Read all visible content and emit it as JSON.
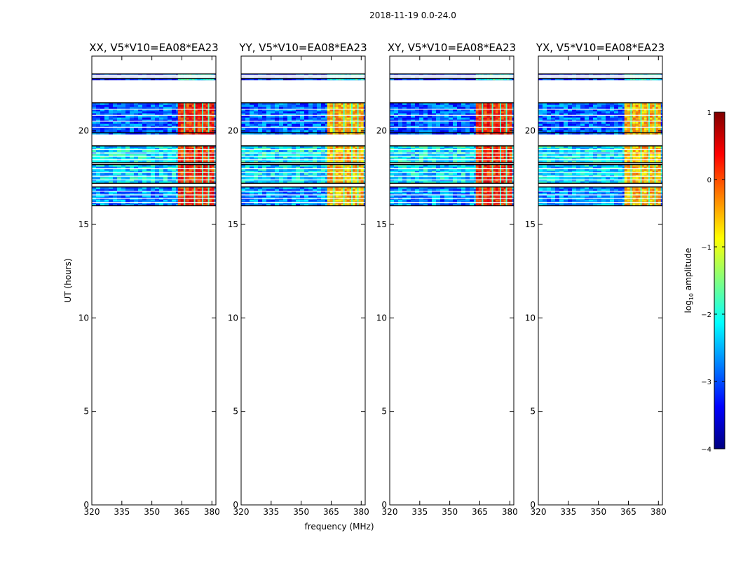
{
  "figure": {
    "suptitle": "2018-11-19 0.0-24.0",
    "xlabel": "frequency (MHz)",
    "ylabel": "UT (hours)"
  },
  "chart_data": {
    "type": "heatmap",
    "xlim": [
      320,
      382
    ],
    "ylim": [
      0,
      24
    ],
    "x_ticks": [
      320,
      335,
      350,
      365,
      380
    ],
    "y_ticks": [
      0,
      5,
      10,
      15,
      20
    ],
    "colorbar": {
      "label_main": "log",
      "label_sub": "10",
      "label_tail": " amplitude",
      "range": [
        -4,
        1
      ],
      "ticks": [
        1,
        0,
        -1,
        -2,
        -3,
        -4
      ],
      "colors": [
        "#7f0000",
        "#ff0000",
        "#ff8000",
        "#ffff00",
        "#80ff80",
        "#00ffff",
        "#0080ff",
        "#0000ff",
        "#00007f"
      ]
    },
    "panels": [
      {
        "title": "XX, V5*V10=EA08*EA23",
        "rfi_level": "strong"
      },
      {
        "title": "YY, V5*V10=EA08*EA23",
        "rfi_level": "moderate"
      },
      {
        "title": "XY, V5*V10=EA08*EA23",
        "rfi_level": "strong"
      },
      {
        "title": "YX, V5*V10=EA08*EA23",
        "rfi_level": "moderate"
      }
    ],
    "time_bands_hours": [
      {
        "from": 22.8,
        "to": 23.05,
        "log_amp": -3.2
      },
      {
        "from": 19.9,
        "to": 21.5,
        "log_amp": -2.9
      },
      {
        "from": 18.3,
        "to": 19.2,
        "log_amp": -2.2
      },
      {
        "from": 17.2,
        "to": 18.2,
        "log_amp": -2.3
      },
      {
        "from": 16.0,
        "to": 17.0,
        "log_amp": -2.7
      }
    ],
    "rfi_band_mhz": [
      363,
      380
    ],
    "rfi_log_amp": 0.2
  }
}
